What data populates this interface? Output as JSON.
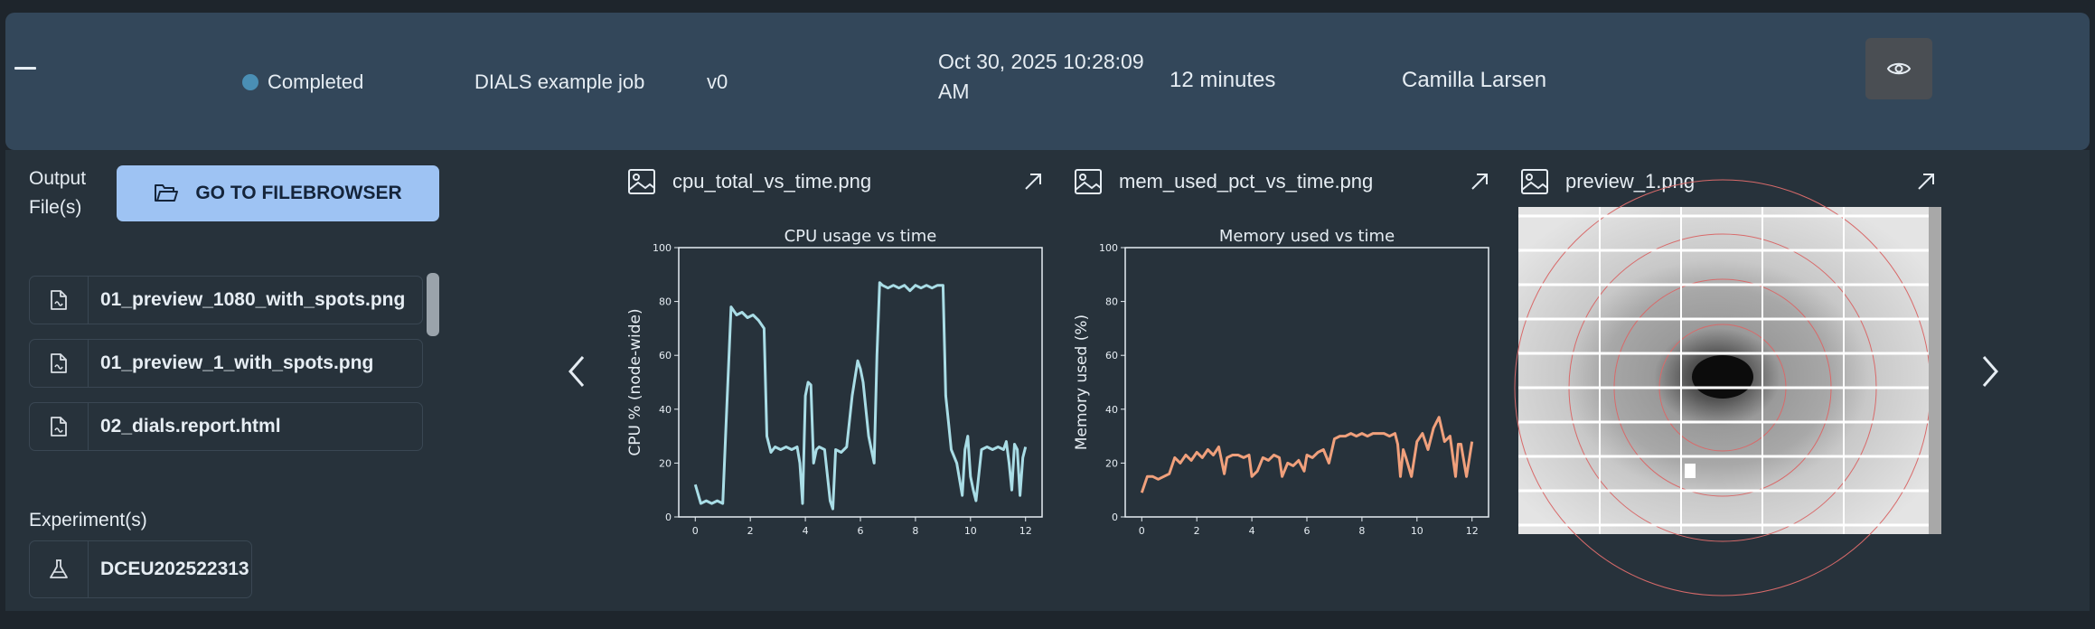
{
  "header": {
    "status": "Completed",
    "status_color": "#4a8fb5",
    "job_name": "DIALS example job",
    "version": "v0",
    "date_line1": "Oct 30, 2025 10:28:09",
    "date_line2": "AM",
    "duration": "12 minutes",
    "user": "Camilla Larsen",
    "view_icon": "eye-icon"
  },
  "outputs": {
    "label_line1": "Output",
    "label_line2": "File(s)",
    "filebrowser_label": "GO TO FILEBROWSER",
    "files": [
      "01_preview_1080_with_spots.png",
      "01_preview_1_with_spots.png",
      "02_dials.report.html"
    ]
  },
  "experiments": {
    "label": "Experiment(s)",
    "items": [
      "DCEU202522313"
    ]
  },
  "cards": [
    {
      "filename": "cpu_total_vs_time.png"
    },
    {
      "filename": "mem_used_pct_vs_time.png"
    },
    {
      "filename": "preview_1.png"
    }
  ],
  "chart_data": [
    {
      "type": "line",
      "title": "CPU usage vs time",
      "xlabel": "",
      "ylabel": "CPU % (node-wide)",
      "xlim": [
        -0.6,
        12.6
      ],
      "ylim": [
        0,
        100
      ],
      "xticks": [
        "0",
        "2",
        "4",
        "6",
        "8",
        "10",
        "12"
      ],
      "yticks": [
        "0",
        "20",
        "40",
        "60",
        "80",
        "100"
      ],
      "color": "#a9dde6",
      "series": [
        {
          "x": [
            0,
            0.2,
            0.4,
            0.6,
            0.8,
            1.0,
            1.1,
            1.3,
            1.5,
            1.7,
            1.9,
            2.1,
            2.3,
            2.5,
            2.6,
            2.75,
            2.9,
            3.1,
            3.3,
            3.5,
            3.7,
            3.8,
            3.9,
            4.0,
            4.1,
            4.2,
            4.3,
            4.4,
            4.5,
            4.7,
            4.9,
            5.0,
            5.1,
            5.3,
            5.5,
            5.7,
            5.9,
            6.0,
            6.1,
            6.3,
            6.5,
            6.6,
            6.7,
            6.8,
            7.0,
            7.2,
            7.4,
            7.6,
            7.8,
            8.0,
            8.2,
            8.4,
            8.6,
            8.8,
            9.0,
            9.1,
            9.2,
            9.3,
            9.5,
            9.7,
            9.8,
            9.9,
            10.0,
            10.1,
            10.2,
            10.4,
            10.6,
            10.8,
            11.0,
            11.2,
            11.3,
            11.4,
            11.5,
            11.6,
            11.7,
            11.8,
            11.9,
            12.0
          ],
          "y": [
            12,
            5,
            6,
            5,
            6,
            5,
            30,
            78,
            75,
            76,
            74,
            75,
            73,
            70,
            30,
            24,
            26,
            25,
            26,
            25,
            26,
            20,
            5,
            45,
            50,
            49,
            20,
            25,
            26,
            25,
            6,
            3,
            25,
            24,
            26,
            45,
            58,
            55,
            50,
            30,
            20,
            60,
            87,
            86,
            85,
            86,
            85,
            86,
            84,
            86,
            85,
            86,
            85,
            86,
            86,
            45,
            35,
            25,
            20,
            8,
            25,
            30,
            15,
            10,
            6,
            25,
            26,
            25,
            26,
            25,
            28,
            20,
            10,
            27,
            25,
            8,
            22,
            26
          ]
        }
      ]
    },
    {
      "type": "line",
      "title": "Memory used vs time",
      "xlabel": "",
      "ylabel": "Memory used (%)",
      "xlim": [
        -0.6,
        12.6
      ],
      "ylim": [
        0,
        100
      ],
      "xticks": [
        "0",
        "2",
        "4",
        "6",
        "8",
        "10",
        "12"
      ],
      "yticks": [
        "0",
        "20",
        "40",
        "60",
        "80",
        "100"
      ],
      "color": "#f0a07c",
      "series": [
        {
          "x": [
            0,
            0.2,
            0.4,
            0.6,
            0.8,
            1.0,
            1.2,
            1.4,
            1.6,
            1.8,
            2.0,
            2.2,
            2.4,
            2.6,
            2.8,
            3.0,
            3.1,
            3.3,
            3.5,
            3.7,
            3.9,
            4.0,
            4.2,
            4.4,
            4.6,
            4.8,
            5.0,
            5.1,
            5.3,
            5.5,
            5.7,
            5.9,
            6.0,
            6.2,
            6.4,
            6.6,
            6.8,
            7.0,
            7.2,
            7.4,
            7.6,
            7.8,
            8.0,
            8.2,
            8.4,
            8.6,
            8.8,
            9.0,
            9.2,
            9.3,
            9.4,
            9.5,
            9.6,
            9.8,
            10.0,
            10.2,
            10.4,
            10.6,
            10.8,
            11.0,
            11.2,
            11.4,
            11.5,
            11.6,
            11.8,
            12.0
          ],
          "y": [
            9,
            15,
            15,
            14,
            15,
            16,
            22,
            20,
            23,
            21,
            24,
            22,
            25,
            23,
            26,
            16,
            22,
            23,
            23,
            22,
            23,
            15,
            17,
            22,
            21,
            23,
            22,
            15,
            20,
            19,
            21,
            17,
            23,
            22,
            24,
            25,
            20,
            29,
            30,
            30,
            31,
            30,
            31,
            30,
            31,
            31,
            31,
            30,
            31,
            27,
            15,
            25,
            22,
            15,
            28,
            31,
            25,
            33,
            37,
            28,
            30,
            15,
            27,
            27,
            15,
            28
          ]
        }
      ]
    }
  ],
  "icons": {
    "collapse": "minus-icon",
    "folder": "folder-open-icon",
    "file": "file-icon",
    "flask": "flask-icon",
    "image": "image-icon",
    "external": "external-link-icon",
    "prev": "chevron-left-icon",
    "next": "chevron-right-icon"
  }
}
